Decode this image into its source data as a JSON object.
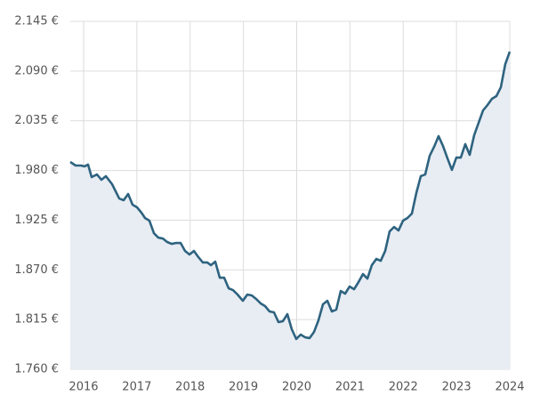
{
  "chart_data": {
    "type": "line",
    "x": [
      2015.75,
      2015.85,
      2015.95,
      2016.017,
      2016.084,
      2016.151,
      2016.251,
      2016.335,
      2016.418,
      2016.535,
      2016.585,
      2016.669,
      2016.752,
      2016.836,
      2016.919,
      2017.003,
      2017.086,
      2017.153,
      2017.236,
      2017.32,
      2017.403,
      2017.487,
      2017.57,
      2017.654,
      2017.737,
      2017.821,
      2017.904,
      2017.988,
      2018.071,
      2018.155,
      2018.238,
      2018.322,
      2018.389,
      2018.472,
      2018.556,
      2018.639,
      2018.723,
      2018.806,
      2018.89,
      2018.99,
      2019.073,
      2019.157,
      2019.24,
      2019.324,
      2019.407,
      2019.491,
      2019.574,
      2019.658,
      2019.741,
      2019.825,
      2019.908,
      2019.992,
      2020.075,
      2020.159,
      2020.242,
      2020.326,
      2020.409,
      2020.493,
      2020.576,
      2020.66,
      2020.743,
      2020.827,
      2020.91,
      2020.994,
      2021.077,
      2021.161,
      2021.244,
      2021.328,
      2021.411,
      2021.495,
      2021.578,
      2021.662,
      2021.745,
      2021.829,
      2021.912,
      2021.996,
      2022.079,
      2022.163,
      2022.246,
      2022.33,
      2022.413,
      2022.497,
      2022.58,
      2022.664,
      2022.747,
      2022.831,
      2022.914,
      2022.998,
      2023.081,
      2023.165,
      2023.248,
      2023.332,
      2023.415,
      2023.499,
      2023.582,
      2023.666,
      2023.749,
      2023.833,
      2023.916,
      2024.0
    ],
    "values": [
      1989.4,
      1985.5,
      1985.5,
      1984.5,
      1986.5,
      1972.7,
      1975.6,
      1969.7,
      1973.7,
      1964.8,
      1958.9,
      1949.0,
      1947.1,
      1954.0,
      1942.2,
      1939.2,
      1933.3,
      1927.4,
      1924.4,
      1910.6,
      1905.7,
      1904.7,
      1900.8,
      1898.8,
      1899.8,
      1899.8,
      1891.0,
      1887.0,
      1891.0,
      1884.1,
      1878.2,
      1878.2,
      1875.2,
      1879.1,
      1861.4,
      1861.4,
      1849.6,
      1847.6,
      1842.7,
      1835.8,
      1842.7,
      1841.7,
      1837.8,
      1832.9,
      1829.9,
      1824.0,
      1823.0,
      1812.2,
      1813.2,
      1821.0,
      1804.3,
      1793.5,
      1798.4,
      1795.4,
      1794.5,
      1801.4,
      1814.2,
      1831.9,
      1835.8,
      1824.0,
      1826.0,
      1846.6,
      1843.7,
      1851.6,
      1848.6,
      1856.5,
      1865.4,
      1860.4,
      1875.2,
      1882.1,
      1880.1,
      1891.0,
      1912.6,
      1917.5,
      1913.6,
      1924.4,
      1927.4,
      1932.3,
      1955.0,
      1973.7,
      1975.6,
      1996.3,
      2006.2,
      2018.0,
      2007.1,
      1993.4,
      1980.6,
      1994.3,
      1994.3,
      2009.1,
      1997.3,
      2019.0,
      2032.7,
      2046.5,
      2052.4,
      2059.3,
      2062.3,
      2072.1,
      2097.7,
      2111.5
    ],
    "color": "#2e6380",
    "fill_color": "#e8edf3",
    "xlim": [
      2015.75,
      2024
    ],
    "xticks": [
      2016,
      2017,
      2018,
      2019,
      2020,
      2021,
      2022,
      2023,
      2024
    ],
    "ylim": [
      1760,
      2145
    ],
    "yticks": [
      {
        "value": 1760,
        "label": "1.760 €"
      },
      {
        "value": 1815,
        "label": "1.815 €"
      },
      {
        "value": 1870,
        "label": "1.870 €"
      },
      {
        "value": 1925,
        "label": "1.925 €"
      },
      {
        "value": 1980,
        "label": "1.980 €"
      },
      {
        "value": 2035,
        "label": "2.035 €"
      },
      {
        "value": 2090,
        "label": "2.090 €"
      },
      {
        "value": 2145,
        "label": "2.145 €"
      }
    ],
    "grid": true
  }
}
